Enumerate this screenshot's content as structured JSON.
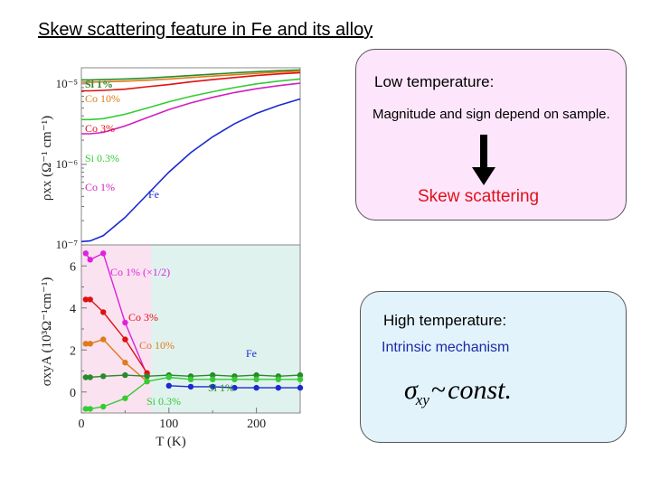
{
  "slide": {
    "title": "Skew scattering feature in Fe and its alloy"
  },
  "low_box": {
    "title": "Low temperature:",
    "description": "Magnitude and sign depend on sample.",
    "conclusion": "Skew scattering",
    "arrow_icon": "down-arrow-icon",
    "conclusion_color": "#e0101a",
    "background": "#fde6fb"
  },
  "high_box": {
    "title": "High temperature:",
    "mechanism": "Intrinsic mechanism",
    "mechanism_color": "#1a2aa8",
    "formula": {
      "symbol": "σ",
      "subscript": "xy",
      "relation": "~",
      "rhs": "const."
    },
    "background": "#e3f3fb"
  },
  "chart_data": [
    {
      "type": "line",
      "panel": "top",
      "ylabel": "ρxx (Ω⁻¹ cm⁻¹)",
      "yscale": "log",
      "ytick_labels": [
        "10⁻⁵",
        "10⁻⁶",
        "10⁻⁷"
      ],
      "x": [
        0,
        10,
        25,
        50,
        75,
        100,
        125,
        150,
        175,
        200,
        225,
        250
      ],
      "labels": [
        "Si 1%",
        "Co 10%",
        "Co 3%",
        "Si 0.3%",
        "Co 1%",
        "Fe"
      ],
      "series": [
        {
          "name": "Si 1%",
          "color": "#2a8a2a",
          "values": [
            1.12e-05,
            1.12e-05,
            1.13e-05,
            1.15e-05,
            1.18e-05,
            1.22e-05,
            1.27e-05,
            1.32e-05,
            1.37e-05,
            1.42e-05,
            1.46e-05,
            1.49e-05
          ]
        },
        {
          "name": "Co 10%",
          "color": "#e07a1a",
          "values": [
            1.05e-05,
            1.05e-05,
            1.06e-05,
            1.08e-05,
            1.11e-05,
            1.15e-05,
            1.2e-05,
            1.25e-05,
            1.3e-05,
            1.35e-05,
            1.4e-05,
            1.44e-05
          ]
        },
        {
          "name": "Co 3%",
          "color": "#e01010",
          "values": [
            8.2e-06,
            8.2e-06,
            8.3e-06,
            8.6e-06,
            9.2e-06,
            9.8e-06,
            1.06e-05,
            1.13e-05,
            1.2e-05,
            1.27e-05,
            1.33e-05,
            1.38e-05
          ]
        },
        {
          "name": "Si 0.3%",
          "color": "#33cc33",
          "values": [
            3.6e-06,
            3.6e-06,
            3.7e-06,
            4.2e-06,
            5e-06,
            6e-06,
            7e-06,
            8e-06,
            9e-06,
            1e-05,
            1.08e-05,
            1.15e-05
          ]
        },
        {
          "name": "Co 1%",
          "color": "#d020c0",
          "values": [
            2.4e-06,
            2.4e-06,
            2.5e-06,
            3e-06,
            3.8e-06,
            4.8e-06,
            5.8e-06,
            6.8e-06,
            7.8e-06,
            8.7e-06,
            9.5e-06,
            1.02e-05
          ]
        },
        {
          "name": "Fe",
          "color": "#1a2ad0",
          "values": [
            1.1e-07,
            1.12e-07,
            1.3e-07,
            2.2e-07,
            4.2e-07,
            8e-07,
            1.4e-06,
            2.2e-06,
            3.2e-06,
            4.3e-06,
            5.4e-06,
            6.5e-06
          ]
        }
      ]
    },
    {
      "type": "line",
      "panel": "bottom",
      "ylabel": "σxyA (10³Ω⁻¹cm⁻¹)",
      "xlabel": "T (K)",
      "ylim": [
        -1,
        7
      ],
      "yticks": [
        0,
        2,
        4,
        6
      ],
      "xlim": [
        0,
        250
      ],
      "xticks": [
        0,
        100,
        200
      ],
      "regions": [
        {
          "from": 0,
          "to": 80,
          "color": "#fbe2f1"
        },
        {
          "from": 80,
          "to": 250,
          "color": "#e0f2ee"
        }
      ],
      "series": [
        {
          "name": "Co 1% (×1/2)",
          "color": "#dd22dd",
          "x": [
            5,
            10,
            25,
            50,
            75
          ],
          "values": [
            6.6,
            6.3,
            6.6,
            3.3,
            0.8
          ]
        },
        {
          "name": "Co 3%",
          "color": "#e01010",
          "x": [
            5,
            10,
            25,
            50,
            75
          ],
          "values": [
            4.4,
            4.4,
            3.8,
            2.5,
            0.9
          ]
        },
        {
          "name": "Co 10%",
          "color": "#e07a1a",
          "x": [
            5,
            10,
            25,
            50,
            75
          ],
          "values": [
            2.3,
            2.3,
            2.5,
            1.4,
            0.5
          ]
        },
        {
          "name": "Fe",
          "color": "#1a2ad0",
          "x": [
            100,
            125,
            150,
            175,
            200,
            225,
            250
          ],
          "values": [
            0.3,
            0.25,
            0.25,
            0.2,
            0.2,
            0.2,
            0.2
          ]
        },
        {
          "name": "Si 1%",
          "color": "#2a8a2a",
          "x": [
            5,
            10,
            25,
            50,
            75,
            100,
            125,
            150,
            175,
            200,
            225,
            250
          ],
          "values": [
            0.7,
            0.7,
            0.75,
            0.8,
            0.75,
            0.8,
            0.75,
            0.8,
            0.75,
            0.8,
            0.75,
            0.8
          ]
        },
        {
          "name": "Si 0.3%",
          "color": "#33cc33",
          "x": [
            5,
            10,
            25,
            50,
            75,
            100,
            125,
            150,
            175,
            200,
            225,
            250
          ],
          "values": [
            -0.8,
            -0.8,
            -0.7,
            -0.3,
            0.5,
            0.7,
            0.6,
            0.6,
            0.6,
            0.6,
            0.6,
            0.6
          ]
        }
      ]
    }
  ]
}
